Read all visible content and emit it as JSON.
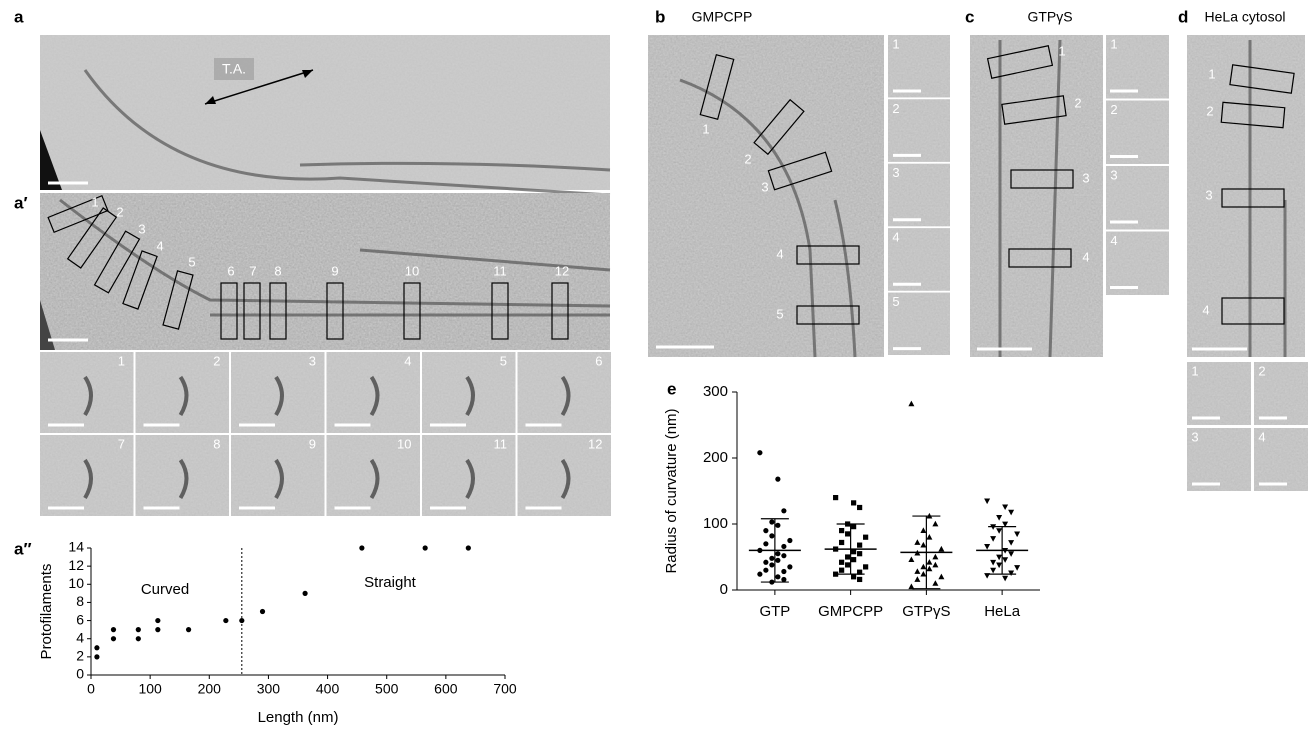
{
  "panels": {
    "a": "a",
    "a_prime": "a′",
    "a_double_prime": "a′′",
    "b": "b",
    "c": "c",
    "d": "d",
    "e": "e"
  },
  "a_annotation": "T.A.",
  "a_prime_boxes": [
    "1",
    "2",
    "3",
    "4",
    "5",
    "6",
    "7",
    "8",
    "9",
    "10",
    "11",
    "12"
  ],
  "a_prime_tiles": [
    "1",
    "2",
    "3",
    "4",
    "5",
    "6",
    "7",
    "8",
    "9",
    "10",
    "11",
    "12"
  ],
  "b_title": "GMPCPP",
  "b_boxes": [
    "1",
    "2",
    "3",
    "4",
    "5"
  ],
  "b_tiles": [
    "1",
    "2",
    "3",
    "4",
    "5"
  ],
  "c_title": "GTPγS",
  "c_boxes": [
    "1",
    "2",
    "3",
    "4"
  ],
  "c_tiles": [
    "1",
    "2",
    "3",
    "4"
  ],
  "d_title": "HeLa cytosol",
  "d_boxes": [
    "1",
    "2",
    "3",
    "4"
  ],
  "d_tiles": [
    "1",
    "2",
    "3",
    "4"
  ],
  "chart_data": [
    {
      "type": "scatter",
      "x_label": "Length (nm)",
      "y_label": "Protofilaments",
      "x": [
        10,
        10,
        38,
        38,
        80,
        80,
        113,
        113,
        165,
        228,
        255,
        290,
        362,
        458,
        565,
        638
      ],
      "values": [
        3,
        2,
        5,
        4,
        5,
        4,
        6,
        5,
        5,
        6,
        6,
        7,
        9,
        14,
        14,
        14
      ],
      "color": "#000000",
      "xlim": [
        0,
        700
      ],
      "ylim": [
        0,
        14
      ],
      "xticks": [
        0,
        100,
        200,
        300,
        400,
        500,
        600,
        700
      ],
      "yticks": [
        0,
        2,
        4,
        6,
        8,
        10,
        12,
        14
      ],
      "divider_x": 255,
      "annotations": [
        "Curved",
        "Straight"
      ]
    },
    {
      "type": "dotplot",
      "y_label": "Radius of curvature (nm)",
      "categories": [
        "GTP",
        "GMPCPP",
        "GTPγS",
        "HeLa"
      ],
      "groups": [
        {
          "marker": "circle",
          "mean": 60,
          "sd": 48,
          "values": [
            208,
            168,
            120,
            103,
            98,
            90,
            82,
            75,
            70,
            66,
            60,
            55,
            52,
            48,
            45,
            42,
            38,
            35,
            30,
            28,
            24,
            20,
            16,
            12
          ]
        },
        {
          "marker": "square",
          "mean": 62,
          "sd": 38,
          "values": [
            140,
            132,
            125,
            100,
            96,
            90,
            85,
            80,
            72,
            68,
            62,
            58,
            55,
            50,
            46,
            42,
            38,
            35,
            30,
            27,
            24,
            20,
            16
          ]
        },
        {
          "marker": "triangle",
          "mean": 57,
          "sd": 55,
          "values": [
            282,
            112,
            100,
            90,
            80,
            72,
            68,
            62,
            56,
            50,
            46,
            42,
            38,
            35,
            32,
            28,
            24,
            20,
            16,
            10,
            5
          ]
        },
        {
          "marker": "triangle-down",
          "mean": 60,
          "sd": 36,
          "values": [
            135,
            126,
            118,
            110,
            100,
            96,
            90,
            85,
            78,
            72,
            66,
            60,
            55,
            50,
            46,
            42,
            38,
            34,
            30,
            26,
            22,
            18
          ]
        }
      ],
      "color": "#000000",
      "ylim": [
        0,
        300
      ],
      "yticks": [
        0,
        100,
        200,
        300
      ]
    }
  ]
}
